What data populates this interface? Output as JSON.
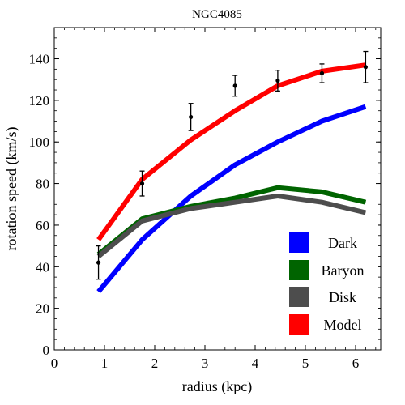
{
  "chart_data": {
    "type": "line",
    "title": "NGC4085",
    "xlabel": "radius (kpc)",
    "ylabel": "rotation speed (km/s)",
    "xlim": [
      0,
      6.5
    ],
    "ylim": [
      0,
      155
    ],
    "x_ticks": [
      0,
      1,
      2,
      3,
      4,
      5,
      6
    ],
    "y_ticks": [
      0,
      20,
      40,
      60,
      80,
      100,
      120,
      140
    ],
    "grid": false,
    "legend_position": "bottom-right",
    "x": [
      0.88,
      1.75,
      2.72,
      3.6,
      4.45,
      5.33,
      6.2
    ],
    "series": [
      {
        "name": "Dark",
        "color": "#0000ff",
        "values": [
          28,
          53,
          74,
          89,
          100,
          110,
          117
        ]
      },
      {
        "name": "Baryon",
        "color": "#006400",
        "values": [
          46,
          63,
          69,
          73,
          78,
          76,
          71
        ]
      },
      {
        "name": "Disk",
        "color": "#4d4d4d",
        "values": [
          45,
          62,
          68,
          71,
          74,
          71,
          66
        ]
      },
      {
        "name": "Model",
        "color": "#ff0000",
        "values": [
          53,
          82,
          101,
          115,
          127,
          134,
          137
        ]
      }
    ],
    "observed": {
      "x": [
        0.88,
        1.75,
        2.72,
        3.6,
        4.45,
        5.33,
        6.2
      ],
      "y": [
        42,
        80,
        112,
        127,
        129.5,
        133,
        136
      ],
      "err": [
        8,
        6,
        6.5,
        5,
        5,
        4.5,
        7.5
      ]
    }
  }
}
